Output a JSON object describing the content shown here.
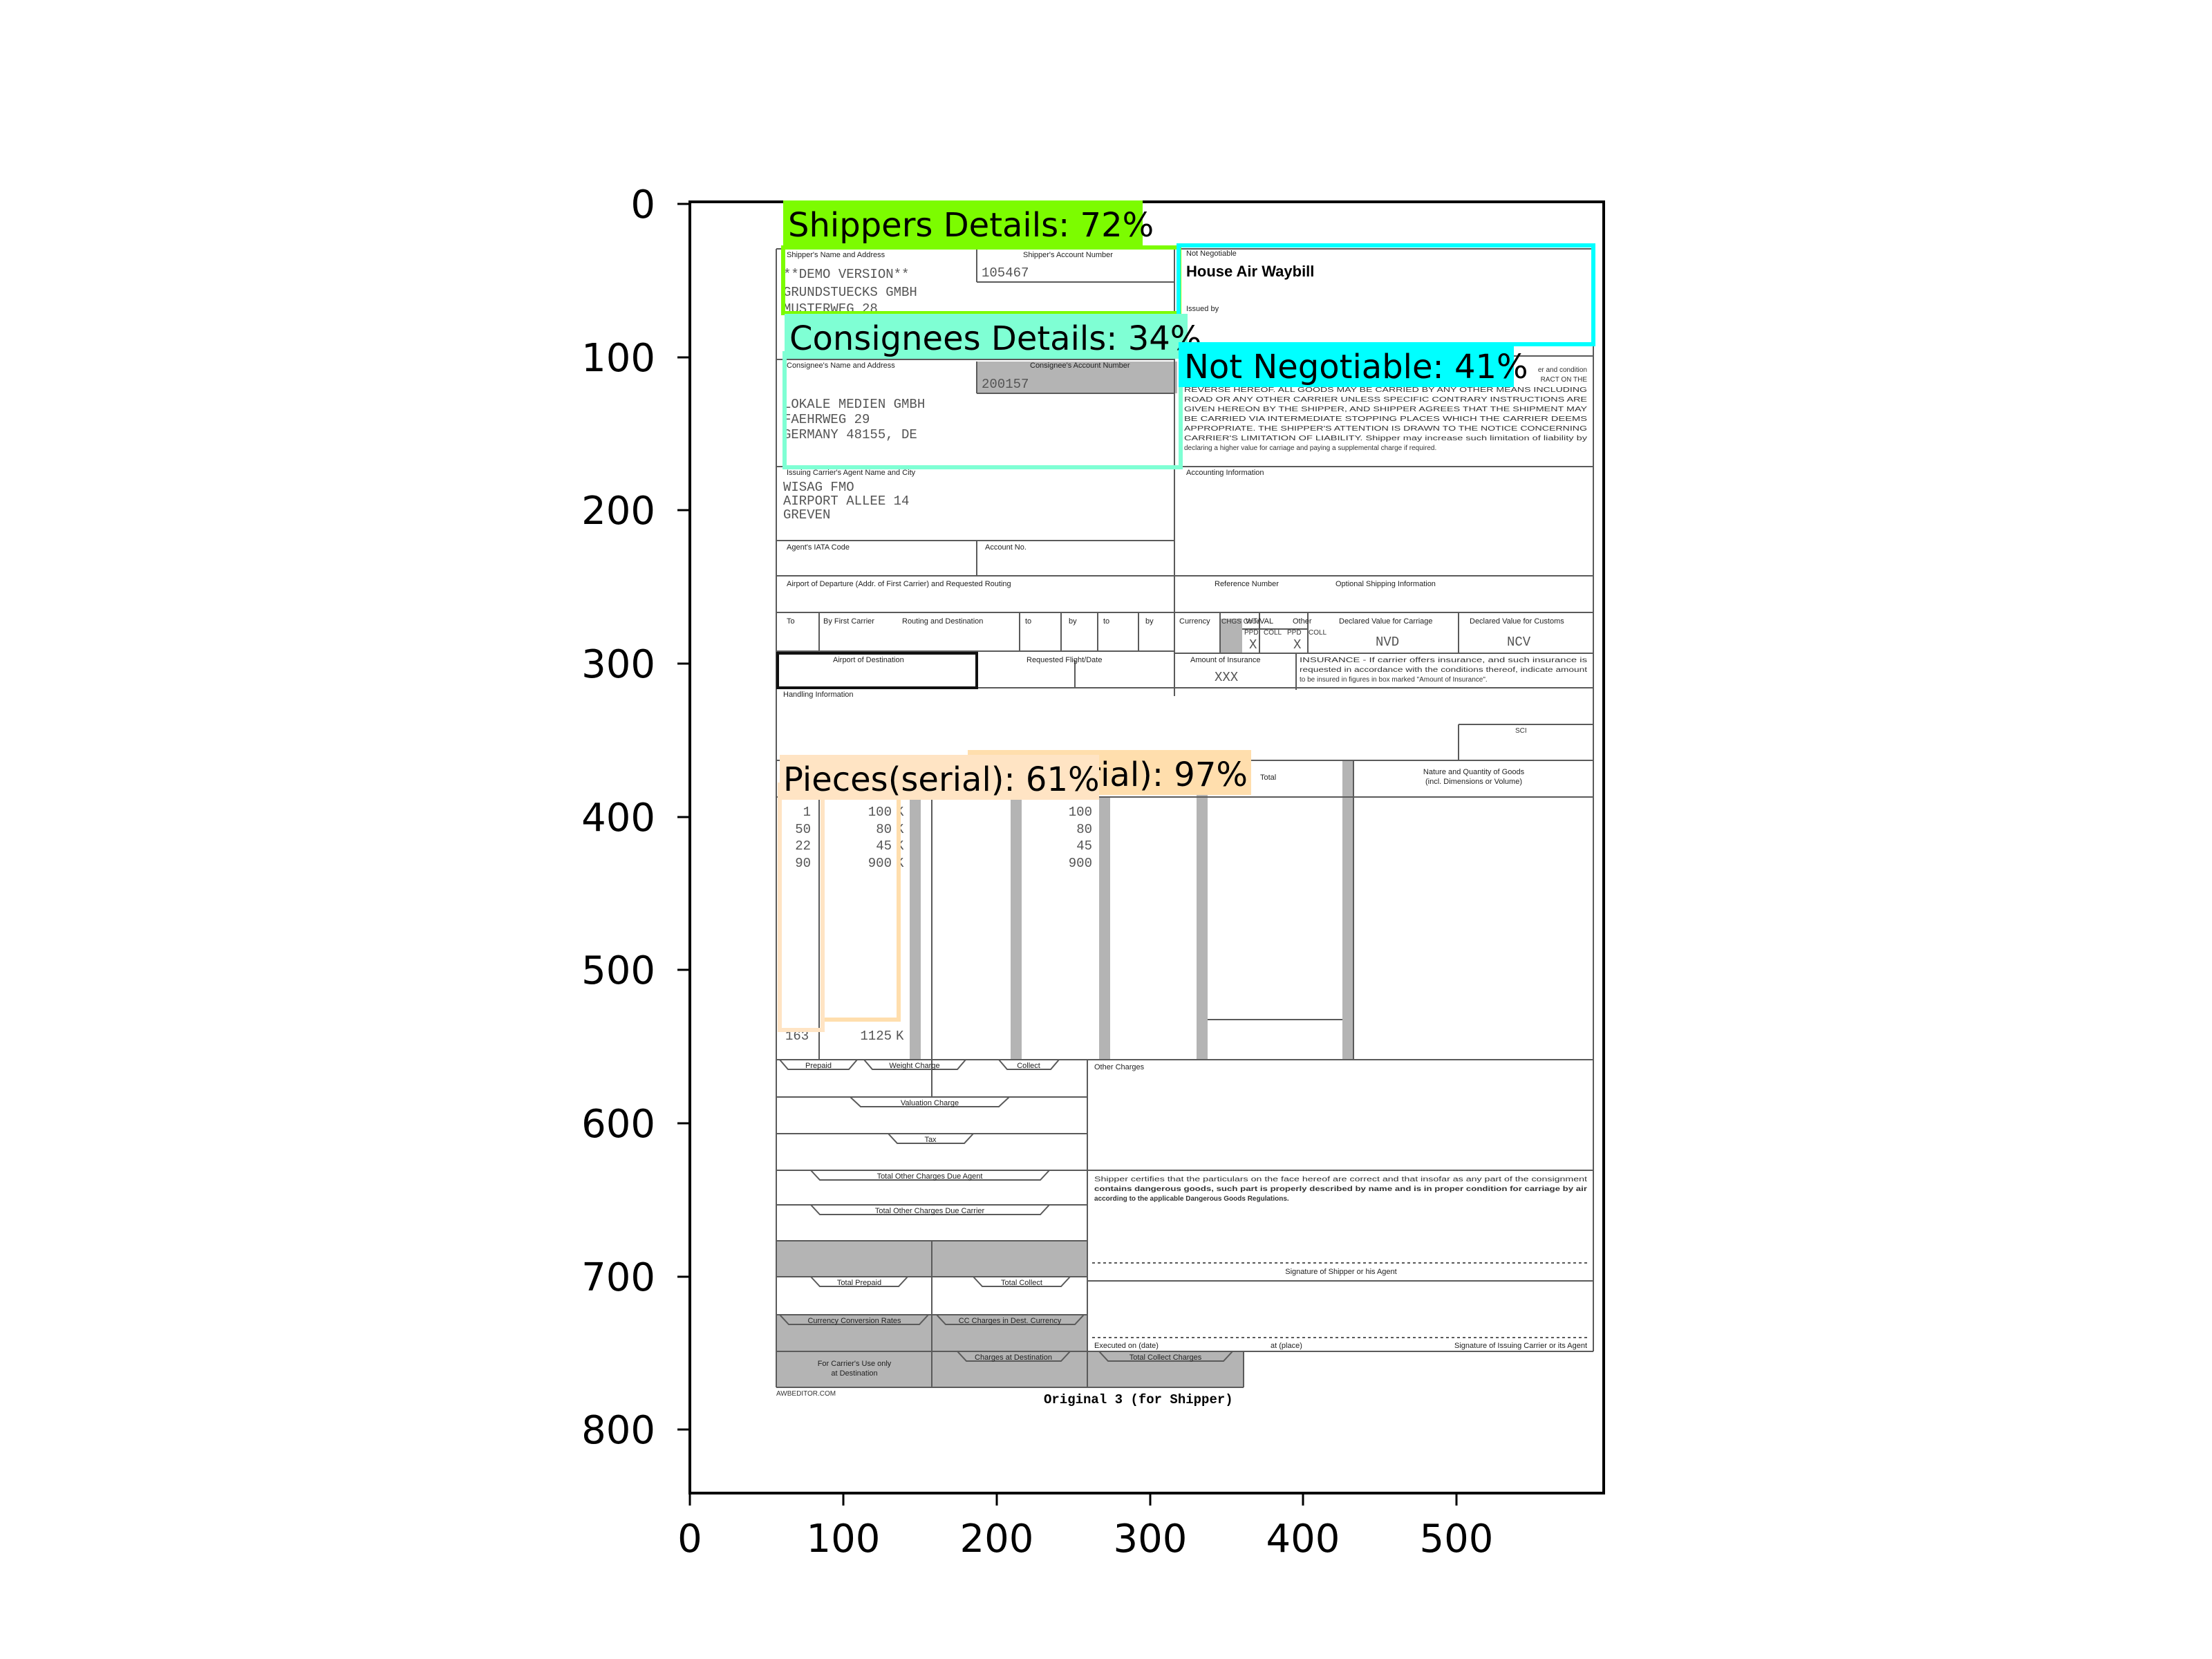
{
  "axes": {
    "x_ticks": [
      "0",
      "100",
      "200",
      "300",
      "400",
      "500"
    ],
    "y_ticks": [
      "0",
      "100",
      "200",
      "300",
      "400",
      "500",
      "600",
      "700",
      "800"
    ]
  },
  "form": {
    "shipper_name_address_label": "Shipper's Name and Address",
    "shipper_account_label": "Shipper's Account Number",
    "shipper_lines": [
      "**DEMO VERSION**",
      "GRUNDSTUECKS GMBH",
      "MUSTERWEG 28"
    ],
    "shipper_account": "105467",
    "not_negotiable_label": "Not Negotiable",
    "house_air_waybill": "House Air Waybill",
    "issued_by_label": "Issued by",
    "consignee_name_address_label": "Consignee's Name and Address",
    "consignee_account_label": "Consignee's Account Number",
    "consignee_account": "200157",
    "consignee_lines": [
      "LOKALE MEDIEN GMBH",
      "FAEHRWEG 29",
      "GERMANY 48155, DE"
    ],
    "conditions_lines": [
      "er and condition",
      "RACT ON THE",
      "REVERSE HEREOF. ALL GOODS MAY BE CARRIED BY ANY OTHER MEANS INCLUDING",
      "ROAD OR ANY OTHER CARRIER UNLESS SPECIFIC CONTRARY INSTRUCTIONS ARE",
      "GIVEN HEREON BY THE SHIPPER, AND SHIPPER AGREES THAT THE SHIPMENT MAY",
      "BE CARRIED VIA INTERMEDIATE STOPPING PLACES WHICH THE CARRIER DEEMS",
      "APPROPRIATE. THE SHIPPER'S ATTENTION IS DRAWN TO THE NOTICE CONCERNING",
      "CARRIER'S LIMITATION OF LIABILITY. Shipper may increase such limitation of liability by",
      "declaring a higher value for carriage and paying a supplemental charge if required."
    ],
    "issuing_agent_label": "Issuing Carrier's Agent Name and City",
    "agent_lines": [
      "WISAG FMO",
      "AIRPORT ALLEE 14",
      "GREVEN"
    ],
    "accounting_info_label": "Accounting Information",
    "agent_iata_label": "Agent's IATA Code",
    "account_no_label": "Account No.",
    "departure_label": "Airport of Departure (Addr. of First Carrier) and Requested Routing",
    "reference_number_label": "Reference Number",
    "optional_shipping_label": "Optional Shipping Information",
    "to_label": "To",
    "by_first_carrier_label": "By First Carrier",
    "routing_destination_label": "Routing and Destination",
    "to2_label": "to",
    "by2_label": "by",
    "to3_label": "to",
    "by3_label": "by",
    "currency_label": "Currency",
    "chgs_code_label": "CHGS Code",
    "wt_val_label": "WT/VAL",
    "other_label": "Other",
    "ppd1_label": "PPD",
    "coll1_label": "COLL",
    "ppd2_label": "PPD",
    "coll2_label": "COLL",
    "mark_x1": "X",
    "mark_x2": "X",
    "declared_carriage_label": "Declared Value for Carriage",
    "declared_customs_label": "Declared Value for Customs",
    "declared_carriage_value": "NVD",
    "declared_customs_value": "NCV",
    "airport_destination_label": "Airport of Destination",
    "requested_flight_label": "Requested Flight/Date",
    "amount_insurance_label": "Amount of Insurance",
    "amount_insurance_value": "XXX",
    "insurance_lines": [
      "INSURANCE - If carrier offers insurance, and such insurance is",
      "requested in accordance with the conditions thereof, indicate amount",
      "to be insured in figures in box marked \"Amount of Insurance\"."
    ],
    "handling_info_label": "Handling Information",
    "sci_label": "SCI",
    "total_label": "Total",
    "nature_goods_lines": [
      "Nature and Quantity of Goods",
      "(incl. Dimensions or Volume)"
    ],
    "pieces_values": [
      "1",
      "50",
      "22",
      "90"
    ],
    "weight_values": [
      "100",
      "80",
      "45",
      "900"
    ],
    "kg_values": [
      "K",
      "K",
      "K",
      "K"
    ],
    "chargeable_values": [
      "100",
      "80",
      "45",
      "900"
    ],
    "total_pieces": "163",
    "total_weight": "1125",
    "total_kg": "K",
    "prepaid_label": "Prepaid",
    "weight_charge_label": "Weight Charge",
    "collect_label": "Collect",
    "other_charges_label": "Other Charges",
    "valuation_charge_label": "Valuation Charge",
    "tax_label": "Tax",
    "total_other_agent_label": "Total Other Charges Due Agent",
    "total_other_carrier_label": "Total Other Charges Due Carrier",
    "certification_lines": [
      "Shipper certifies that the particulars on the face hereof are correct and that insofar as any part of the consignment",
      "contains dangerous goods, such part is properly described by name and is in proper condition for carriage by air",
      "according to the applicable Dangerous Goods Regulations."
    ],
    "signature_shipper_label": "Signature of Shipper or his Agent",
    "total_prepaid_label": "Total Prepaid",
    "total_collect_label": "Total Collect",
    "currency_conversion_label": "Currency Conversion Rates",
    "cc_charges_label": "CC Charges in Dest. Currency",
    "executed_on_label": "Executed on (date)",
    "at_place_label": "at (place)",
    "signature_carrier_label": "Signature of Issuing Carrier or its Agent",
    "carrier_use_lines": [
      "For Carrier's Use only",
      "at Destination"
    ],
    "charges_destination_label": "Charges at Destination",
    "total_collect_charges_label": "Total Collect Charges",
    "awbeditor_label": "AWBEDITOR.COM",
    "original_label": "Original 3 (for Shipper)"
  },
  "detections": [
    {
      "label": "Shippers Details: 72%",
      "color": "#7cfc00"
    },
    {
      "label": "Consignees Details: 34%",
      "color": "#7fffd4"
    },
    {
      "label": "Not Negotiable: 41%",
      "color": "#00ffff"
    },
    {
      "label": "rial): 97%",
      "color": "#ffdead"
    },
    {
      "label": "Pieces(serial): 61%",
      "color": "#ffe4c4"
    }
  ]
}
